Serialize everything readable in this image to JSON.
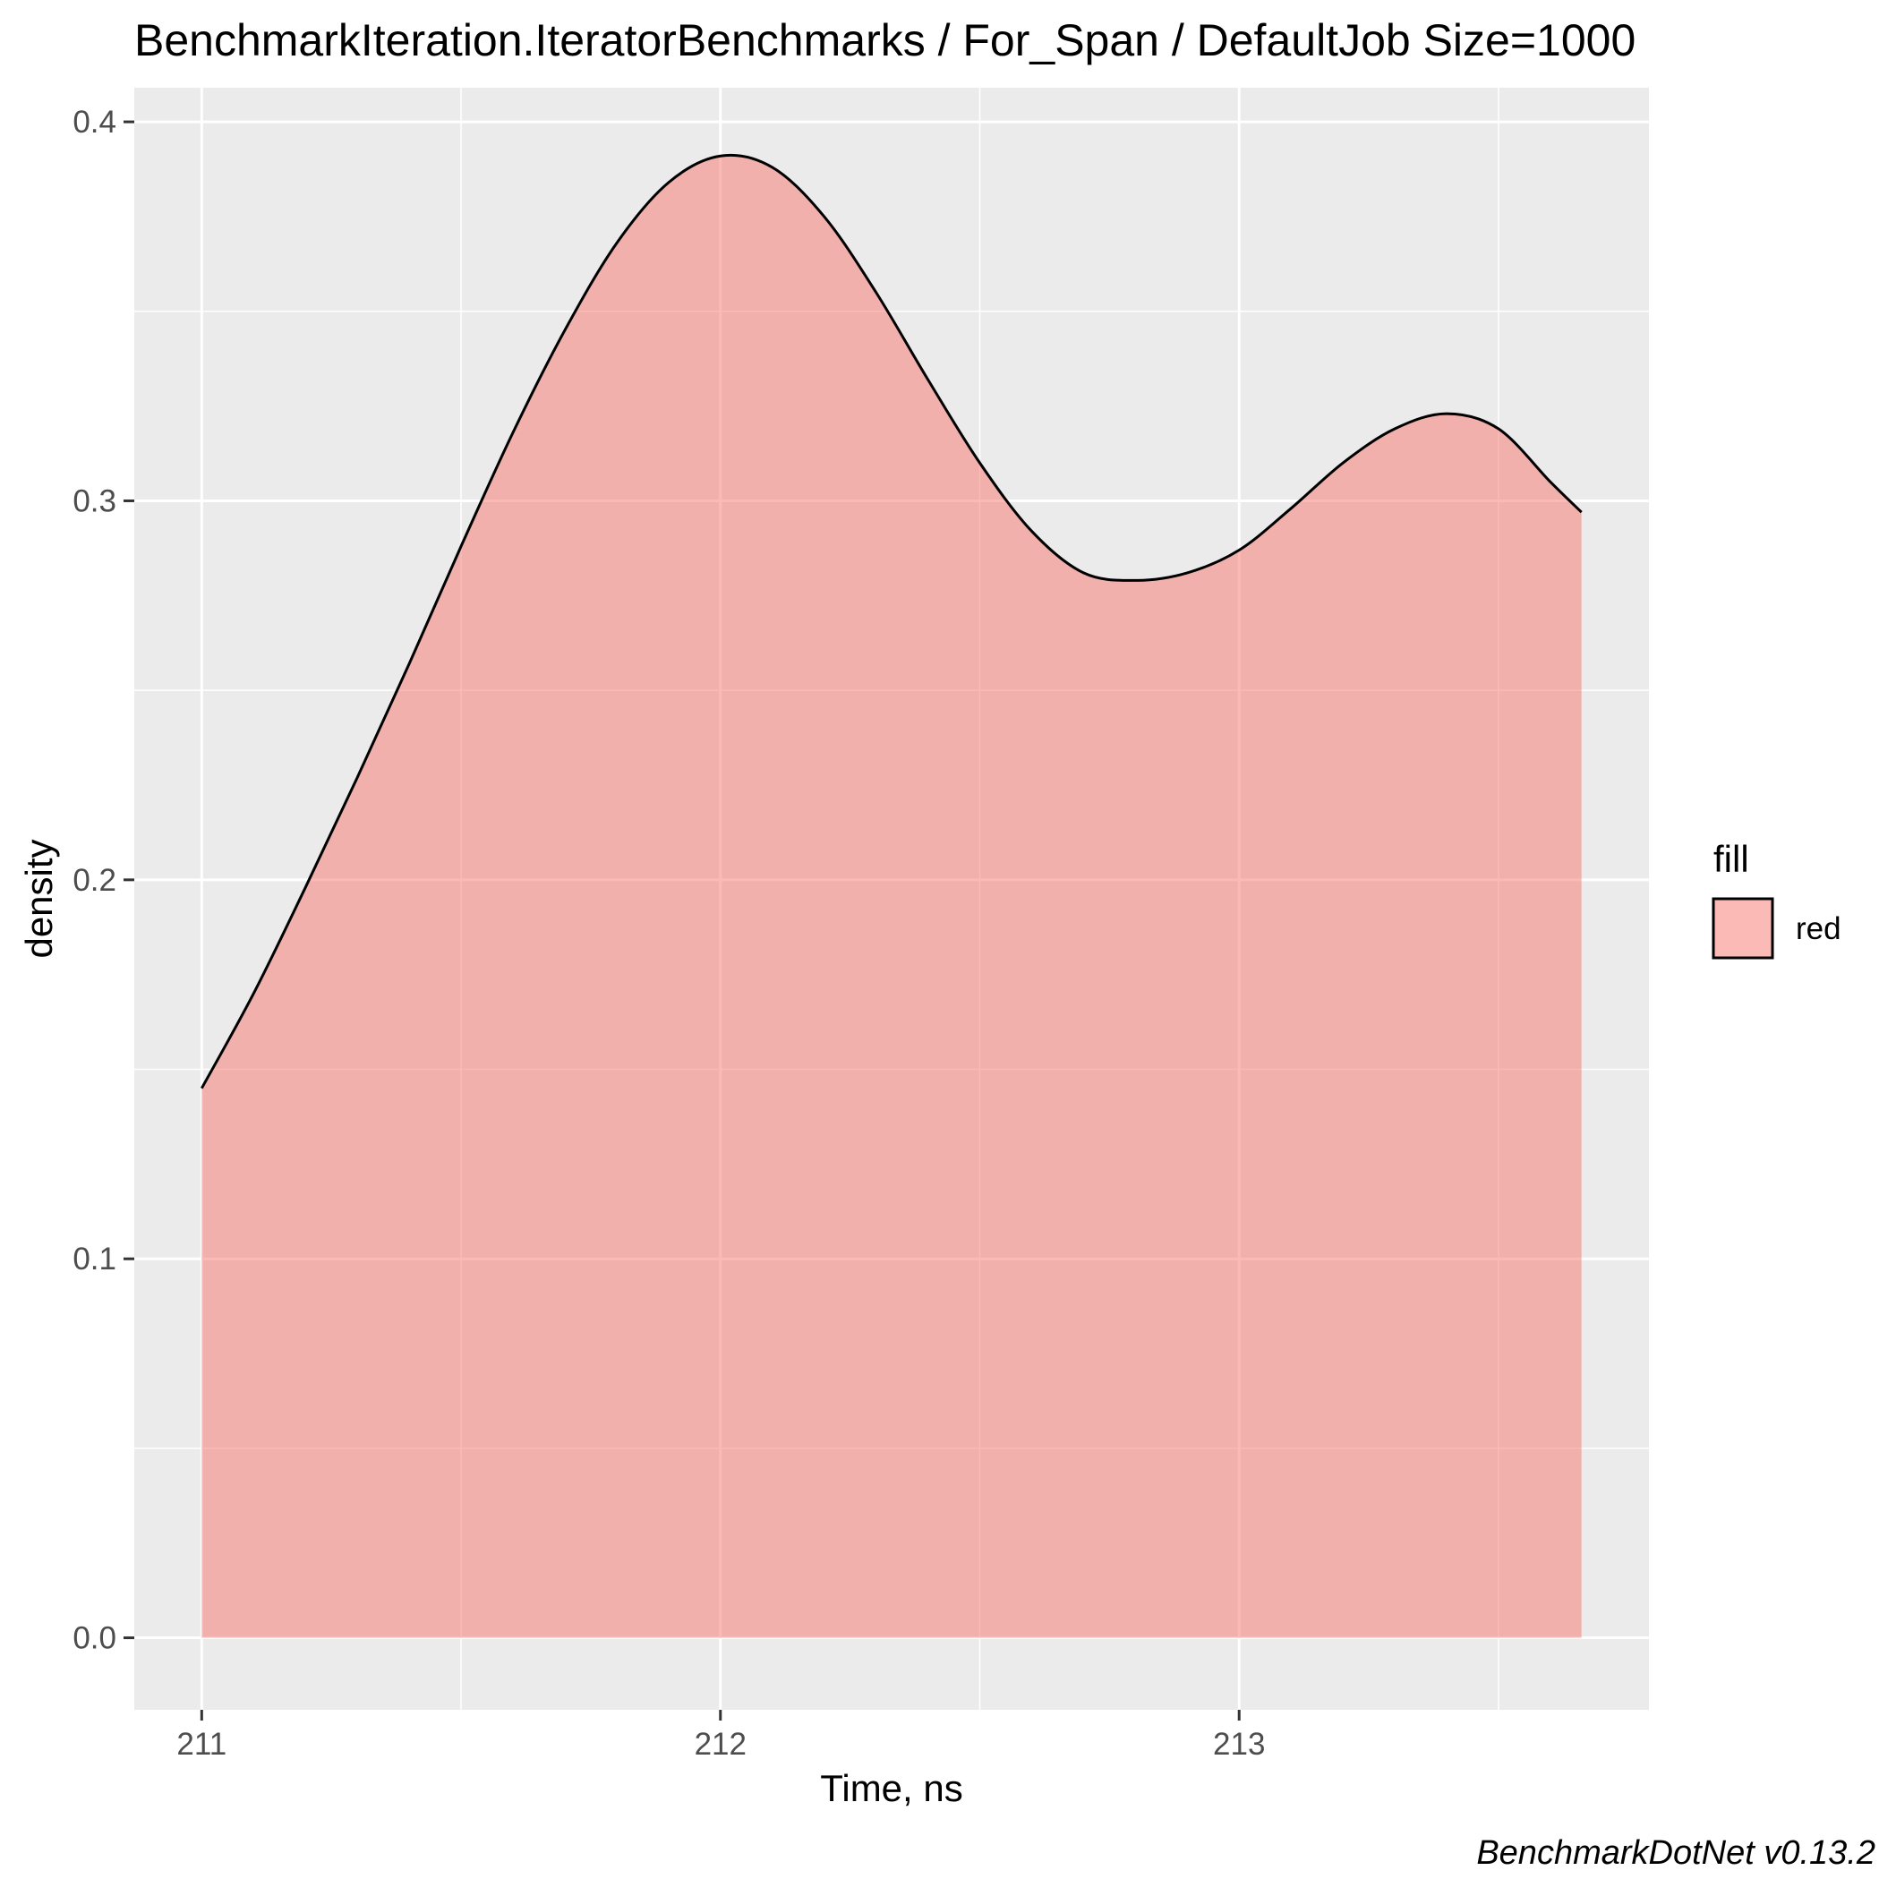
{
  "chart_data": {
    "type": "area",
    "title": "BenchmarkIteration.IteratorBenchmarks / For_Span / DefaultJob Size=1000",
    "xlabel": "Time, ns",
    "ylabel": "density",
    "xlim": [
      210.87,
      213.79
    ],
    "ylim": [
      -0.019,
      0.409
    ],
    "x_ticks": [
      211,
      212,
      213
    ],
    "x_tick_labels": [
      "211",
      "212",
      "213"
    ],
    "y_ticks": [
      0.0,
      0.1,
      0.2,
      0.3,
      0.4
    ],
    "y_tick_labels": [
      "0.0",
      "0.1",
      "0.2",
      "0.3",
      "0.4"
    ],
    "grid": true,
    "legend": {
      "title": "fill",
      "placement": "right",
      "entries": [
        {
          "label": "red",
          "color": "#F8766D"
        }
      ]
    },
    "caption": "BenchmarkDotNet v0.13.2",
    "fill_color": "#F8766D",
    "fill_opacity": 0.5,
    "series": [
      {
        "x": [
          211.0,
          211.1,
          211.2,
          211.3,
          211.4,
          211.5,
          211.6,
          211.7,
          211.8,
          211.9,
          212.0,
          212.1,
          212.2,
          212.3,
          212.4,
          212.5,
          212.6,
          212.7,
          212.8,
          212.9,
          213.0,
          213.1,
          213.2,
          213.3,
          213.4,
          213.5,
          213.6,
          213.66
        ],
        "y": [
          0.145,
          0.17,
          0.198,
          0.227,
          0.257,
          0.288,
          0.318,
          0.345,
          0.368,
          0.384,
          0.391,
          0.388,
          0.375,
          0.355,
          0.332,
          0.31,
          0.292,
          0.281,
          0.279,
          0.281,
          0.287,
          0.298,
          0.31,
          0.319,
          0.323,
          0.319,
          0.305,
          0.297
        ]
      }
    ]
  }
}
